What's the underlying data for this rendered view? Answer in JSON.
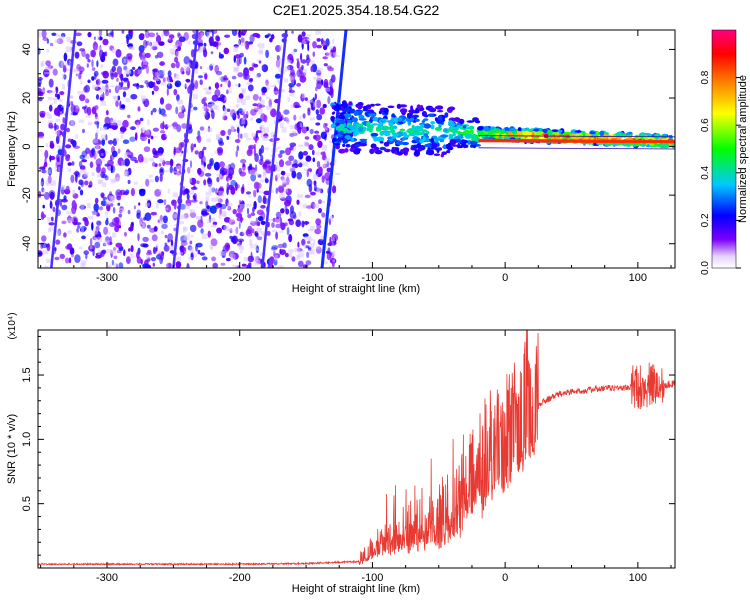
{
  "title": "C2E1.2025.354.18.54.G22",
  "chart_data": [
    {
      "type": "heatmap",
      "title": "C2E1.2025.354.18.54.G22",
      "xlabel": "Height of straight line (km)",
      "ylabel": "Frequency (Hz)",
      "xlim": [
        -352,
        128
      ],
      "ylim": [
        -50,
        48
      ],
      "xticks": [
        -300,
        -200,
        -100,
        0,
        100
      ],
      "yticks": [
        -40,
        -20,
        0,
        20,
        40
      ],
      "colorbar": {
        "label": "Normalized spectral amplitude",
        "range": [
          0,
          1
        ],
        "ticks": [
          "0.0",
          "0.2",
          "0.4",
          "0.6",
          "0.8"
        ],
        "colors": [
          "#ffffff",
          "#7b00ff",
          "#0000ff",
          "#00c8ff",
          "#00ff00",
          "#ffff00",
          "#ff8000",
          "#ff0000",
          "#ff0080"
        ]
      },
      "features": {
        "noise_region_x": [
          -352,
          -128
        ],
        "signal_line": {
          "x": [
            -128,
            128
          ],
          "y": [
            8,
            2
          ],
          "start_amplitude": 0.4,
          "end_amplitude": 0.85
        },
        "aliased_lines_x": [
          -342,
          -250,
          -183,
          -138
        ]
      }
    },
    {
      "type": "line",
      "xlabel": "Height of straight line (km)",
      "ylabel": "SNR (10 * v/v)",
      "y_multiplier": "(x10⁴)",
      "xlim": [
        -352,
        128
      ],
      "ylim": [
        0,
        1.85
      ],
      "xticks": [
        -300,
        -200,
        -100,
        0,
        100
      ],
      "yticks": [
        "0.5",
        "1.0",
        "1.5"
      ],
      "color": "#e83a32",
      "series": [
        {
          "x": [
            -352,
            -300,
            -250,
            -200,
            -150,
            -110,
            -100,
            -90,
            -80,
            -70,
            -60,
            -50,
            -40,
            -30,
            -20,
            -10,
            0,
            10,
            20,
            30,
            40,
            50,
            60,
            70,
            80,
            90,
            100,
            110,
            115,
            120,
            128
          ],
          "y": [
            0.03,
            0.03,
            0.03,
            0.03,
            0.035,
            0.05,
            0.12,
            0.2,
            0.25,
            0.22,
            0.28,
            0.32,
            0.4,
            0.55,
            0.7,
            0.8,
            0.9,
            1.05,
            1.22,
            1.3,
            1.35,
            1.37,
            1.38,
            1.39,
            1.4,
            1.4,
            1.41,
            1.42,
            1.42,
            1.43,
            1.43
          ]
        }
      ]
    }
  ]
}
